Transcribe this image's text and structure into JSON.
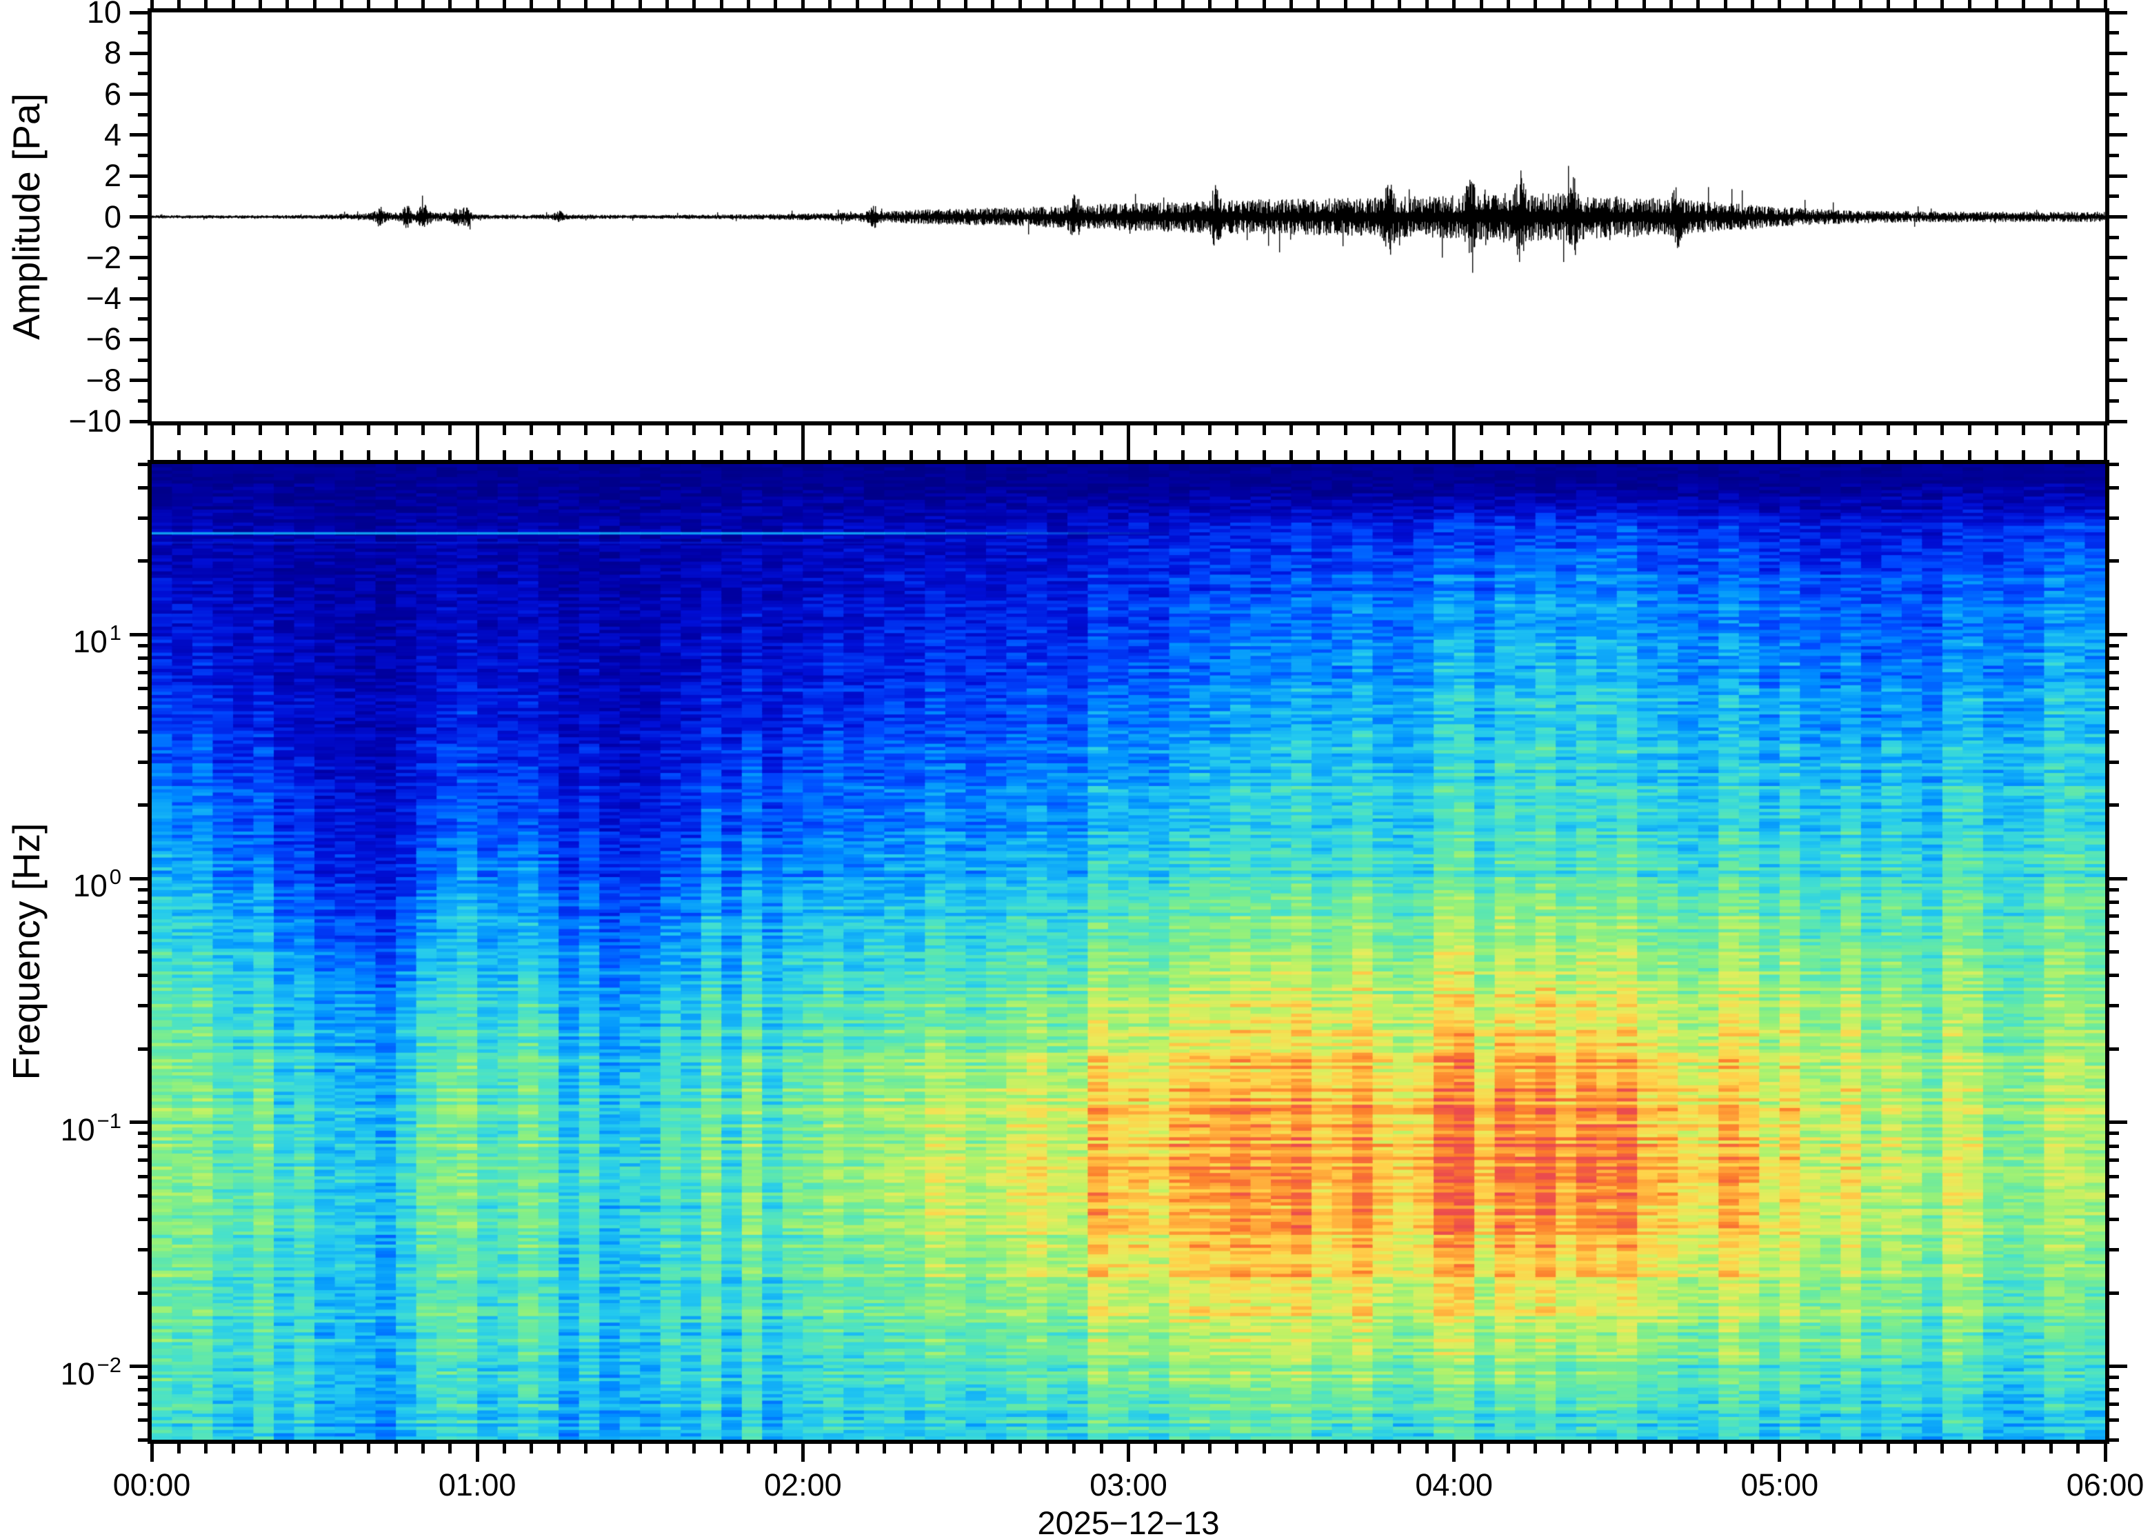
{
  "figure": {
    "background": "#ffffff",
    "frame_color": "#000000",
    "trace_color": "#000000"
  },
  "top_panel": {
    "ylabel": "Amplitude [Pa]",
    "ylim": [
      -10,
      10
    ],
    "ytick_major_step": 2,
    "ytick_minor_step": 1,
    "amplitude_ticks": [
      {
        "pa": 10,
        "label": "10"
      },
      {
        "pa": 8,
        "label": "8"
      },
      {
        "pa": 6,
        "label": "6"
      },
      {
        "pa": 4,
        "label": "4"
      },
      {
        "pa": 2,
        "label": "2"
      },
      {
        "pa": 0,
        "label": "0"
      },
      {
        "pa": -2,
        "label": "−2"
      },
      {
        "pa": -4,
        "label": "−4"
      },
      {
        "pa": -6,
        "label": "−6"
      },
      {
        "pa": -8,
        "label": "−8"
      },
      {
        "pa": -10,
        "label": "−10"
      }
    ]
  },
  "bottom_panel": {
    "ylabel": "Frequency [Hz]",
    "freq_limits_hz": [
      0.005,
      50
    ],
    "freq_ticks": [
      {
        "hz": 10,
        "mantissa": "10",
        "exponent": "1"
      },
      {
        "hz": 1,
        "mantissa": "10",
        "exponent": "0"
      },
      {
        "hz": 0.1,
        "mantissa": "10",
        "exponent": "−1"
      },
      {
        "hz": 0.01,
        "mantissa": "10",
        "exponent": "−2"
      }
    ]
  },
  "time_axis": {
    "start_label": "00:00",
    "end_label": "06:00",
    "date_label": "2025−12−13",
    "major_step_minutes": 60,
    "minor_step_minutes": 5,
    "hour_labels": [
      {
        "min": 0,
        "label": "00:00"
      },
      {
        "min": 60,
        "label": "01:00"
      },
      {
        "min": 120,
        "label": "02:00"
      },
      {
        "min": 180,
        "label": "03:00"
      },
      {
        "min": 240,
        "label": "04:00"
      },
      {
        "min": 300,
        "label": "05:00"
      },
      {
        "min": 360,
        "label": "06:00"
      }
    ]
  },
  "chart_data": [
    {
      "type": "line",
      "name": "infrasound-waveform",
      "ylabel": "Amplitude [Pa]",
      "ylim": [
        -10,
        10
      ],
      "x_start_minute": 0,
      "x_end_minute": 360,
      "dt_minutes": 5,
      "envelope_pa": [
        0.05,
        0.05,
        0.05,
        0.05,
        0.05,
        0.06,
        0.06,
        0.09,
        0.12,
        0.14,
        0.16,
        0.12,
        0.08,
        0.07,
        0.07,
        0.08,
        0.07,
        0.06,
        0.06,
        0.06,
        0.07,
        0.07,
        0.08,
        0.09,
        0.1,
        0.12,
        0.15,
        0.18,
        0.21,
        0.24,
        0.26,
        0.28,
        0.3,
        0.33,
        0.36,
        0.4,
        0.42,
        0.45,
        0.48,
        0.5,
        0.52,
        0.54,
        0.55,
        0.56,
        0.58,
        0.6,
        0.62,
        0.64,
        0.66,
        0.7,
        0.74,
        0.76,
        0.72,
        0.68,
        0.64,
        0.6,
        0.55,
        0.5,
        0.45,
        0.38,
        0.3,
        0.26,
        0.22,
        0.2,
        0.18,
        0.17,
        0.17,
        0.16,
        0.16,
        0.16,
        0.16,
        0.16,
        0.16
      ],
      "spike_events": [
        {
          "min": 42,
          "pa": 0.35
        },
        {
          "min": 47,
          "pa": 0.4
        },
        {
          "min": 50,
          "pa": 0.45
        },
        {
          "min": 56,
          "pa": 0.4
        },
        {
          "min": 58,
          "pa": 0.5
        },
        {
          "min": 75,
          "pa": 0.2
        },
        {
          "min": 133,
          "pa": 0.4
        },
        {
          "min": 170,
          "pa": 0.8
        },
        {
          "min": 196,
          "pa": 0.9
        },
        {
          "min": 228,
          "pa": 1.1
        },
        {
          "min": 243,
          "pa": 1.2
        },
        {
          "min": 252,
          "pa": 1.4
        },
        {
          "min": 262,
          "pa": 1.1
        },
        {
          "min": 281,
          "pa": 0.9
        }
      ]
    },
    {
      "type": "heatmap",
      "name": "infrasound-spectrogram",
      "xlabel_date": "2025−12−13",
      "ylabel": "Frequency [Hz]",
      "freq_limits_hz": [
        0.005,
        50
      ],
      "x_minutes": [
        0,
        15,
        30,
        45,
        60,
        75,
        90,
        105,
        120,
        135,
        150,
        165,
        180,
        195,
        210,
        225,
        240,
        255,
        270,
        285,
        300,
        315,
        330,
        345,
        360
      ],
      "freqs_hz": [
        40,
        25,
        15,
        8,
        4,
        2,
        1,
        0.5,
        0.25,
        0.12,
        0.06,
        0.03,
        0.015,
        0.008,
        0.005
      ],
      "values_relative_power": [
        [
          0.04,
          0.04,
          0.04,
          0.04,
          0.04,
          0.04,
          0.04,
          0.04,
          0.04,
          0.04,
          0.04,
          0.04,
          0.04,
          0.04,
          0.04,
          0.04,
          0.04,
          0.05,
          0.05,
          0.05,
          0.05,
          0.05,
          0.06,
          0.07,
          0.07
        ],
        [
          0.1,
          0.1,
          0.08,
          0.07,
          0.1,
          0.09,
          0.08,
          0.1,
          0.12,
          0.13,
          0.14,
          0.15,
          0.17,
          0.18,
          0.2,
          0.22,
          0.24,
          0.26,
          0.26,
          0.24,
          0.2,
          0.18,
          0.2,
          0.24,
          0.26
        ],
        [
          0.13,
          0.12,
          0.09,
          0.08,
          0.12,
          0.1,
          0.09,
          0.12,
          0.14,
          0.16,
          0.17,
          0.18,
          0.2,
          0.22,
          0.25,
          0.28,
          0.3,
          0.33,
          0.32,
          0.3,
          0.26,
          0.24,
          0.26,
          0.3,
          0.32
        ],
        [
          0.16,
          0.15,
          0.11,
          0.1,
          0.15,
          0.12,
          0.11,
          0.15,
          0.17,
          0.19,
          0.21,
          0.22,
          0.24,
          0.27,
          0.3,
          0.33,
          0.36,
          0.38,
          0.37,
          0.35,
          0.3,
          0.28,
          0.3,
          0.34,
          0.36
        ],
        [
          0.22,
          0.2,
          0.13,
          0.12,
          0.2,
          0.15,
          0.13,
          0.2,
          0.22,
          0.24,
          0.26,
          0.28,
          0.3,
          0.33,
          0.36,
          0.39,
          0.41,
          0.43,
          0.42,
          0.4,
          0.36,
          0.34,
          0.36,
          0.4,
          0.41
        ],
        [
          0.28,
          0.26,
          0.17,
          0.15,
          0.26,
          0.2,
          0.17,
          0.26,
          0.28,
          0.3,
          0.32,
          0.34,
          0.36,
          0.39,
          0.41,
          0.43,
          0.45,
          0.46,
          0.45,
          0.44,
          0.41,
          0.4,
          0.41,
          0.44,
          0.45
        ],
        [
          0.34,
          0.32,
          0.22,
          0.19,
          0.32,
          0.26,
          0.22,
          0.32,
          0.34,
          0.36,
          0.38,
          0.4,
          0.42,
          0.44,
          0.46,
          0.48,
          0.5,
          0.51,
          0.5,
          0.49,
          0.46,
          0.45,
          0.46,
          0.49,
          0.5
        ],
        [
          0.42,
          0.4,
          0.3,
          0.27,
          0.4,
          0.34,
          0.3,
          0.4,
          0.43,
          0.45,
          0.47,
          0.5,
          0.53,
          0.55,
          0.58,
          0.6,
          0.62,
          0.63,
          0.62,
          0.6,
          0.56,
          0.53,
          0.54,
          0.55,
          0.56
        ],
        [
          0.48,
          0.46,
          0.38,
          0.35,
          0.47,
          0.42,
          0.38,
          0.47,
          0.5,
          0.53,
          0.56,
          0.6,
          0.64,
          0.66,
          0.68,
          0.7,
          0.72,
          0.73,
          0.72,
          0.7,
          0.64,
          0.6,
          0.58,
          0.58,
          0.6
        ],
        [
          0.52,
          0.5,
          0.42,
          0.4,
          0.52,
          0.47,
          0.42,
          0.52,
          0.56,
          0.62,
          0.66,
          0.7,
          0.74,
          0.76,
          0.78,
          0.8,
          0.84,
          0.86,
          0.84,
          0.8,
          0.7,
          0.64,
          0.62,
          0.62,
          0.66
        ],
        [
          0.52,
          0.5,
          0.44,
          0.42,
          0.52,
          0.48,
          0.44,
          0.52,
          0.56,
          0.62,
          0.68,
          0.72,
          0.76,
          0.78,
          0.8,
          0.82,
          0.86,
          0.88,
          0.86,
          0.82,
          0.72,
          0.66,
          0.63,
          0.62,
          0.64
        ],
        [
          0.5,
          0.48,
          0.42,
          0.4,
          0.5,
          0.46,
          0.42,
          0.5,
          0.54,
          0.58,
          0.64,
          0.68,
          0.72,
          0.74,
          0.76,
          0.77,
          0.78,
          0.79,
          0.78,
          0.74,
          0.66,
          0.62,
          0.6,
          0.58,
          0.58
        ],
        [
          0.48,
          0.46,
          0.42,
          0.4,
          0.48,
          0.44,
          0.42,
          0.48,
          0.5,
          0.52,
          0.56,
          0.58,
          0.62,
          0.64,
          0.65,
          0.66,
          0.66,
          0.66,
          0.65,
          0.63,
          0.58,
          0.55,
          0.53,
          0.52,
          0.52
        ],
        [
          0.44,
          0.43,
          0.4,
          0.38,
          0.44,
          0.41,
          0.4,
          0.44,
          0.45,
          0.46,
          0.48,
          0.5,
          0.52,
          0.53,
          0.54,
          0.54,
          0.54,
          0.53,
          0.52,
          0.5,
          0.48,
          0.46,
          0.45,
          0.44,
          0.45
        ],
        [
          0.4,
          0.39,
          0.36,
          0.34,
          0.4,
          0.37,
          0.35,
          0.4,
          0.4,
          0.41,
          0.42,
          0.43,
          0.44,
          0.44,
          0.45,
          0.44,
          0.44,
          0.43,
          0.42,
          0.41,
          0.4,
          0.39,
          0.38,
          0.38,
          0.39
        ]
      ],
      "spectral_line": {
        "hz": 26,
        "fade_start_minute": 130,
        "fade_end_minute": 190,
        "value": 0.36
      },
      "secondary_line": {
        "hz": 23.8,
        "fade_start_minute": 110,
        "fade_end_minute": 160,
        "value": 0.2
      },
      "top_navy_band": {
        "above_hz": 42,
        "value": 0.045
      },
      "colormap_stops": [
        [
          0.0,
          "#000083"
        ],
        [
          0.08,
          "#0000A8"
        ],
        [
          0.16,
          "#0010D8"
        ],
        [
          0.24,
          "#0048FF"
        ],
        [
          0.32,
          "#0090FF"
        ],
        [
          0.4,
          "#22C8F0"
        ],
        [
          0.46,
          "#45E0CE"
        ],
        [
          0.52,
          "#66E9A4"
        ],
        [
          0.58,
          "#8FF07E"
        ],
        [
          0.64,
          "#BDF266"
        ],
        [
          0.7,
          "#E8EC5C"
        ],
        [
          0.76,
          "#FFD34B"
        ],
        [
          0.82,
          "#FFA93A"
        ],
        [
          0.88,
          "#FB7B2C"
        ],
        [
          0.94,
          "#EF5348"
        ],
        [
          1.0,
          "#E03A5A"
        ]
      ],
      "noise_seed": 20251213
    }
  ]
}
